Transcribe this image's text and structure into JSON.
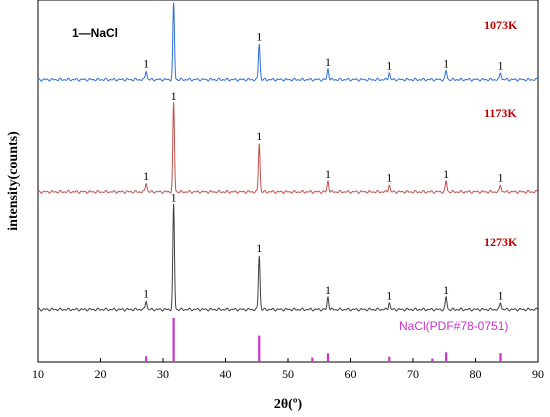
{
  "chart_data": {
    "type": "line",
    "xlabel": "2θ(º)",
    "ylabel": "intensity(counts)",
    "xlim": [
      10,
      90
    ],
    "xticks": [
      10,
      20,
      30,
      40,
      50,
      60,
      70,
      80,
      90
    ],
    "legend_label": "1—NaCl",
    "peak_marker": "1",
    "peak_positions": [
      27.3,
      31.7,
      45.4,
      56.4,
      66.2,
      75.3,
      84.0
    ],
    "series": [
      {
        "name": "1073K",
        "color": "#2f6fd6",
        "baseline": 0.78,
        "peaks": [
          [
            27.3,
            0.025
          ],
          [
            31.7,
            0.21
          ],
          [
            45.4,
            0.1
          ],
          [
            56.4,
            0.03
          ],
          [
            66.2,
            0.02
          ],
          [
            75.3,
            0.025
          ],
          [
            84.0,
            0.02
          ]
        ]
      },
      {
        "name": "1173K",
        "color": "#c0504d",
        "baseline": 0.47,
        "peaks": [
          [
            27.3,
            0.025
          ],
          [
            31.7,
            0.245
          ],
          [
            45.4,
            0.135
          ],
          [
            56.4,
            0.03
          ],
          [
            66.2,
            0.02
          ],
          [
            75.3,
            0.03
          ],
          [
            84.0,
            0.02
          ]
        ]
      },
      {
        "name": "1273K",
        "color": "#404040",
        "baseline": 0.145,
        "peaks": [
          [
            27.3,
            0.025
          ],
          [
            31.7,
            0.29
          ],
          [
            45.4,
            0.15
          ],
          [
            56.4,
            0.035
          ],
          [
            66.2,
            0.02
          ],
          [
            75.3,
            0.035
          ],
          [
            84.0,
            0.02
          ]
        ]
      }
    ],
    "reference": {
      "name": "NaCl(PDF#78-0751)",
      "color": "#cc33cc",
      "sticks": [
        [
          27.3,
          0.13
        ],
        [
          31.7,
          1.0
        ],
        [
          45.4,
          0.6
        ],
        [
          53.9,
          0.1
        ],
        [
          56.4,
          0.2
        ],
        [
          66.2,
          0.12
        ],
        [
          73.1,
          0.08
        ],
        [
          75.3,
          0.22
        ],
        [
          84.0,
          0.2
        ]
      ]
    }
  }
}
